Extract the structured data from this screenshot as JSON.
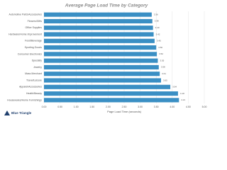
{
  "chart_data": {
    "type": "barh",
    "title": "Average Page Load Time by Category",
    "categories": [
      "Automotive Parts/Accessories",
      "Flowers/Gifts",
      "Office Supplies",
      "Hardware/Home Improvement",
      "Food/Beverage",
      "Sporting Goods",
      "Consumer Electronics",
      "Specialty",
      "Jewelry",
      "Mass Merchant",
      "Travel/Leisure",
      "Apparel/Accessories",
      "Health/Beauty",
      "Housewares/Home Furnishings"
    ],
    "values": [
      3.36,
      3.38,
      3.4,
      3.42,
      3.45,
      3.5,
      3.52,
      3.55,
      3.58,
      3.61,
      3.65,
      3.94,
      4.18,
      4.21
    ],
    "value_labels": [
      "3.36",
      "3.38",
      "3.40",
      "3.42",
      "3.45",
      "3.50",
      "3.52",
      "3.55",
      "3.58",
      "3.61",
      "3.65",
      "3.94",
      "4.18",
      "4.21"
    ],
    "color": "#3a8fc4",
    "xlabel": "Page Load Time (seconds)",
    "xlim": [
      0,
      5
    ],
    "xticks": [
      {
        "value": 0,
        "label": "0.00"
      },
      {
        "value": 0.5,
        "label": "0.50"
      },
      {
        "value": 1,
        "label": "1.00"
      },
      {
        "value": 1.5,
        "label": "1.50"
      },
      {
        "value": 2,
        "label": "2.00"
      },
      {
        "value": 2.5,
        "label": "2.50"
      },
      {
        "value": 3,
        "label": "3.00"
      },
      {
        "value": 3.5,
        "label": "3.50"
      },
      {
        "value": 4,
        "label": "4.00"
      },
      {
        "value": 4.5,
        "label": "4.50"
      },
      {
        "value": 5,
        "label": "5.00"
      }
    ],
    "grid": true
  },
  "logo": "Blue Triangle"
}
